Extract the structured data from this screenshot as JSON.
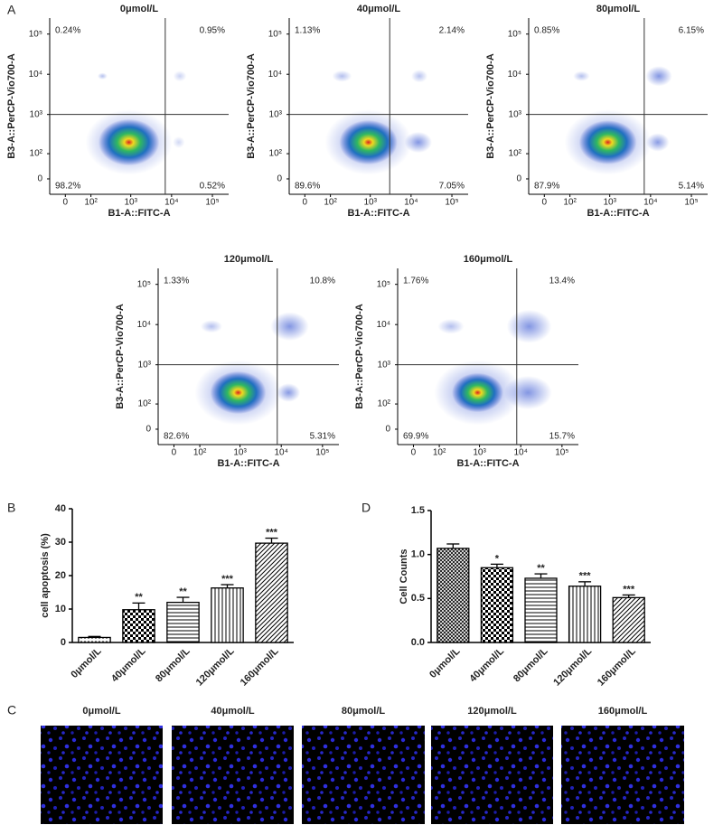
{
  "panel_labels": [
    "A",
    "B",
    "C",
    "D"
  ],
  "chart_data": [
    {
      "type": "flow",
      "title": "0μmol/L",
      "xlabel": "B1-A::FITC-A",
      "ylabel": "B3-A::PerCP-Vio700-A",
      "scale": "biex",
      "xlim": [
        -50,
        250000
      ],
      "ylim": [
        -50,
        250000
      ],
      "xticks": [
        0,
        {
          "value": 100,
          "label": "10²"
        },
        {
          "value": 1000,
          "label": "10³"
        },
        {
          "value": 10000,
          "label": "10⁴"
        },
        {
          "value": 100000,
          "label": "10⁵"
        }
      ],
      "yticks": [
        0,
        {
          "value": 100,
          "label": "10²"
        },
        {
          "value": 1000,
          "label": "10³"
        },
        {
          "value": 10000,
          "label": "10⁴"
        },
        {
          "value": 100000,
          "label": "10⁵"
        }
      ],
      "gate": [
        7000,
        1000
      ],
      "quadrants": {
        "values": [
          0.24,
          0.95,
          98.2,
          0.52
        ],
        "value_labels": [
          "0.24%",
          "0.95%",
          "98.2%",
          "0.52%"
        ]
      }
    },
    {
      "type": "flow",
      "title": "40μmol/L",
      "xlabel": "B1-A::FITC-A",
      "ylabel": "B3-A::PerCP-Vio700-A",
      "scale": "biex",
      "xlim": [
        -50,
        250000
      ],
      "ylim": [
        -50,
        250000
      ],
      "xticks": [
        0,
        {
          "value": 100,
          "label": "10²"
        },
        {
          "value": 1000,
          "label": "10³"
        },
        {
          "value": 10000,
          "label": "10⁴"
        },
        {
          "value": 100000,
          "label": "10⁵"
        }
      ],
      "yticks": [
        0,
        {
          "value": 100,
          "label": "10²"
        },
        {
          "value": 1000,
          "label": "10³"
        },
        {
          "value": 10000,
          "label": "10⁴"
        },
        {
          "value": 100000,
          "label": "10⁵"
        }
      ],
      "gate": [
        3000,
        1000
      ],
      "quadrants": {
        "values": [
          1.13,
          2.14,
          89.6,
          7.05
        ],
        "value_labels": [
          "1.13%",
          "2.14%",
          "89.6%",
          "7.05%"
        ]
      }
    },
    {
      "type": "flow",
      "title": "80μmol/L",
      "xlabel": "B1-A::FITC-A",
      "ylabel": "B3-A::PerCP-Vio700-A",
      "scale": "biex",
      "xlim": [
        -50,
        250000
      ],
      "ylim": [
        -50,
        250000
      ],
      "xticks": [
        0,
        {
          "value": 100,
          "label": "10²"
        },
        {
          "value": 1000,
          "label": "10³"
        },
        {
          "value": 10000,
          "label": "10⁴"
        },
        {
          "value": 100000,
          "label": "10⁵"
        }
      ],
      "yticks": [
        0,
        {
          "value": 100,
          "label": "10²"
        },
        {
          "value": 1000,
          "label": "10³"
        },
        {
          "value": 10000,
          "label": "10⁴"
        },
        {
          "value": 100000,
          "label": "10⁵"
        }
      ],
      "gate": [
        7000,
        1000
      ],
      "quadrants": {
        "values": [
          0.85,
          6.15,
          87.9,
          5.14
        ],
        "value_labels": [
          "0.85%",
          "6.15%",
          "87.9%",
          "5.14%"
        ]
      }
    },
    {
      "type": "flow",
      "title": "120μmol/L",
      "xlabel": "B1-A::FITC-A",
      "ylabel": "B3-A::PerCP-Vio700-A",
      "scale": "biex",
      "xlim": [
        -50,
        250000
      ],
      "ylim": [
        -50,
        250000
      ],
      "xticks": [
        0,
        {
          "value": 100,
          "label": "10²"
        },
        {
          "value": 1000,
          "label": "10³"
        },
        {
          "value": 10000,
          "label": "10⁴"
        },
        {
          "value": 100000,
          "label": "10⁵"
        }
      ],
      "yticks": [
        0,
        {
          "value": 100,
          "label": "10²"
        },
        {
          "value": 1000,
          "label": "10³"
        },
        {
          "value": 10000,
          "label": "10⁴"
        },
        {
          "value": 100000,
          "label": "10⁵"
        }
      ],
      "gate": [
        8000,
        1000
      ],
      "quadrants": {
        "values": [
          1.33,
          10.8,
          82.6,
          5.31
        ],
        "value_labels": [
          "1.33%",
          "10.8%",
          "82.6%",
          "5.31%"
        ]
      }
    },
    {
      "type": "flow",
      "title": "160μmol/L",
      "xlabel": "B1-A::FITC-A",
      "ylabel": "B3-A::PerCP-Vio700-A",
      "scale": "biex",
      "xlim": [
        -50,
        250000
      ],
      "ylim": [
        -50,
        250000
      ],
      "xticks": [
        0,
        {
          "value": 100,
          "label": "10²"
        },
        {
          "value": 1000,
          "label": "10³"
        },
        {
          "value": 10000,
          "label": "10⁴"
        },
        {
          "value": 100000,
          "label": "10⁵"
        }
      ],
      "yticks": [
        0,
        {
          "value": 100,
          "label": "10²"
        },
        {
          "value": 1000,
          "label": "10³"
        },
        {
          "value": 10000,
          "label": "10⁴"
        },
        {
          "value": 100000,
          "label": "10⁵"
        }
      ],
      "gate": [
        8000,
        1000
      ],
      "quadrants": {
        "values": [
          1.76,
          13.4,
          69.9,
          15.7
        ],
        "value_labels": [
          "1.76%",
          "13.4%",
          "69.9%",
          "15.7%"
        ]
      }
    },
    {
      "type": "bar",
      "ylabel": "cell apoptosis (%)",
      "categories": [
        "0μmol/L",
        "40μmol/L",
        "80μmol/L",
        "120μmol/L",
        "160μmol/L"
      ],
      "values": [
        1.5,
        9.8,
        12,
        16.3,
        29.7
      ],
      "errors": [
        0.3,
        2,
        1.5,
        1,
        1.5
      ],
      "annotations": [
        null,
        "**",
        "**",
        "***",
        "***"
      ],
      "patterns": [
        "dots",
        "checker",
        "hlines",
        "vlines",
        "diagonal"
      ],
      "ylim": [
        0,
        40
      ],
      "yticks": [
        0,
        10,
        20,
        30,
        40
      ]
    },
    {
      "type": "bar",
      "ylabel": "Cell Counts",
      "categories": [
        "0μmol/L",
        "40μmol/L",
        "80μmol/L",
        "120μmol/L",
        "160μmol/L"
      ],
      "values": [
        1.07,
        0.85,
        0.73,
        0.64,
        0.51
      ],
      "errors": [
        0.05,
        0.04,
        0.05,
        0.05,
        0.03
      ],
      "annotations": [
        null,
        "*",
        "**",
        "***",
        "***"
      ],
      "patterns": [
        "crosshatch",
        "checker",
        "hlines",
        "vlines",
        "diagonal"
      ],
      "ylim": [
        0,
        1.5
      ],
      "yticks": [
        {
          "value": 0,
          "label": "0.0"
        },
        0.5,
        {
          "value": 1,
          "label": "1.0"
        },
        1.5
      ]
    },
    {
      "type": "image",
      "title": "0μmol/L"
    },
    {
      "type": "image",
      "title": "40μmol/L"
    },
    {
      "type": "image",
      "title": "80μmol/L"
    },
    {
      "type": "image",
      "title": "120μmol/L"
    },
    {
      "type": "image",
      "title": "160μmol/L"
    }
  ]
}
